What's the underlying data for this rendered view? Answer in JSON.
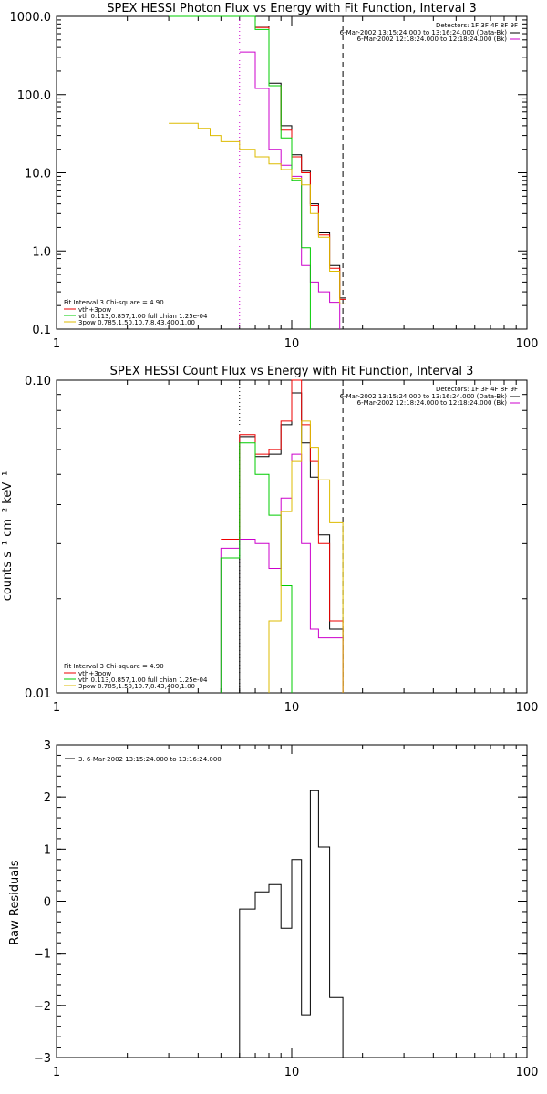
{
  "chart_data": [
    {
      "type": "line",
      "title": "SPEX HESSI Photon Flux vs Energy with Fit Function, Interval 3",
      "xlabel": "",
      "ylabel": "",
      "xscale": "log",
      "yscale": "log",
      "xlim": [
        1,
        100
      ],
      "ylim": [
        0.1,
        1000
      ],
      "x_ticks": [
        1,
        10,
        100
      ],
      "x_tick_labels": [
        "1",
        "10",
        "100"
      ],
      "y_ticks": [
        0.1,
        1,
        10,
        100,
        1000
      ],
      "y_tick_labels": [
        "0.1",
        "1.0",
        "10.0",
        "100.0",
        "1000.0"
      ],
      "vlines": [
        {
          "x": 6.0,
          "style": "dotted",
          "color": "#cc00cc"
        },
        {
          "x": 16.5,
          "style": "dashed",
          "color": "#000000"
        }
      ],
      "legend_right": [
        "Detectors: 1F 3F 4F 8F 9F",
        "6-Mar-2002 13:15:24.000 to 13:16:24.000 (Data-Bk)",
        "6-Mar-2002 12:18:24.000 to 12:18:24.000 (Bk)"
      ],
      "legend_left": [
        "Fit Interval 3   Chi-square = 4.90",
        "vth+3pow",
        "vth 0.113,0.857,1.00  full chian 1.25e-04",
        "3pow 0.785,1.50,10.7,8.43,400,1.00"
      ],
      "series": [
        {
          "color": "#000000",
          "points": [
            [
              6.0,
              1000
            ],
            [
              7.0,
              750
            ],
            [
              8.0,
              140
            ],
            [
              9.0,
              40
            ],
            [
              10.0,
              17
            ],
            [
              11.0,
              10.5
            ],
            [
              12.0,
              4.0
            ],
            [
              13.0,
              1.7
            ],
            [
              14.5,
              0.65
            ],
            [
              16.0,
              0.25
            ],
            [
              17.0,
              0.1
            ]
          ]
        },
        {
          "color": "#ee0000",
          "points": [
            [
              6.0,
              1000
            ],
            [
              7.0,
              720
            ],
            [
              8.0,
              130
            ],
            [
              9.0,
              35
            ],
            [
              10.0,
              16
            ],
            [
              11.0,
              10
            ],
            [
              12.0,
              3.8
            ],
            [
              13.0,
              1.6
            ],
            [
              14.5,
              0.6
            ],
            [
              16.0,
              0.24
            ],
            [
              17.0,
              0.1
            ]
          ]
        },
        {
          "color": "#cc00cc",
          "points": [
            [
              6.0,
              350
            ],
            [
              7.0,
              120
            ],
            [
              8.0,
              20
            ],
            [
              9.0,
              12.5
            ],
            [
              10.0,
              9
            ],
            [
              11.0,
              0.65
            ],
            [
              12.0,
              0.4
            ],
            [
              13.0,
              0.3
            ],
            [
              14.5,
              0.22
            ],
            [
              16.0,
              0.1
            ]
          ]
        },
        {
          "color": "#00cc00",
          "points": [
            [
              3.0,
              1000
            ],
            [
              6.0,
              1000
            ],
            [
              7.0,
              680
            ],
            [
              8.0,
              130
            ],
            [
              9.0,
              28
            ],
            [
              10.0,
              8
            ],
            [
              11.0,
              1.1
            ],
            [
              12.0,
              0.1
            ]
          ]
        },
        {
          "color": "#ddbb00",
          "points": [
            [
              3.0,
              43
            ],
            [
              4.0,
              37
            ],
            [
              4.5,
              30
            ],
            [
              5.0,
              25
            ],
            [
              6.0,
              20
            ],
            [
              7.0,
              16
            ],
            [
              8.0,
              13
            ],
            [
              9.0,
              11
            ],
            [
              10.0,
              8.5
            ],
            [
              11.0,
              7
            ],
            [
              12.0,
              3.0
            ],
            [
              13.0,
              1.5
            ],
            [
              14.5,
              0.55
            ],
            [
              16.0,
              0.21
            ],
            [
              17.0,
              0.1
            ]
          ]
        }
      ]
    },
    {
      "type": "line",
      "title": "SPEX HESSI Count Flux vs Energy with Fit Function, Interval 3",
      "xlabel": "",
      "ylabel": "counts s⁻¹ cm⁻² keV⁻¹",
      "xscale": "log",
      "yscale": "log",
      "xlim": [
        1,
        100
      ],
      "ylim": [
        0.01,
        0.1
      ],
      "x_ticks": [
        1,
        10,
        100
      ],
      "x_tick_labels": [
        "1",
        "10",
        "100"
      ],
      "y_ticks": [
        0.01,
        0.1
      ],
      "y_tick_labels": [
        "0.01",
        "0.10"
      ],
      "vlines": [
        {
          "x": 6.0,
          "style": "dotted",
          "color": "#000000"
        },
        {
          "x": 16.5,
          "style": "dashed",
          "color": "#000000"
        }
      ],
      "legend_right": [
        "Detectors: 1F 3F 4F 8F 9F",
        "6-Mar-2002 13:15:24.000 to 13:16:24.000 (Data-Bk)",
        "6-Mar-2002 12:18:24.000 to 12:18:24.000 (Bk)"
      ],
      "legend_left": [
        "Fit Interval 3   Chi-square = 4.90",
        "vth+3pow",
        "vth 0.113,0.857,1.00  full chian 1.25e-04",
        "3pow 0.785,1.50,10.7,8.43,400,1.00"
      ],
      "series": [
        {
          "color": "#000000",
          "points": [
            [
              6.0,
              0.01
            ],
            [
              6.0,
              0.066
            ],
            [
              7.0,
              0.057
            ],
            [
              8.0,
              0.058
            ],
            [
              9.0,
              0.072
            ],
            [
              10.0,
              0.091
            ],
            [
              11.0,
              0.063
            ],
            [
              12.0,
              0.049
            ],
            [
              13.0,
              0.032
            ],
            [
              14.5,
              0.016
            ],
            [
              16.5,
              0.01
            ]
          ]
        },
        {
          "color": "#ee0000",
          "points": [
            [
              5.0,
              0.031
            ],
            [
              6.0,
              0.067
            ],
            [
              7.0,
              0.058
            ],
            [
              8.0,
              0.06
            ],
            [
              9.0,
              0.074
            ],
            [
              10.0,
              0.1
            ],
            [
              11.0,
              0.072
            ],
            [
              12.0,
              0.055
            ],
            [
              13.0,
              0.03
            ],
            [
              14.5,
              0.017
            ],
            [
              16.5,
              0.01
            ]
          ]
        },
        {
          "color": "#cc00cc",
          "points": [
            [
              5.0,
              0.01
            ],
            [
              5.0,
              0.029
            ],
            [
              6.0,
              0.031
            ],
            [
              7.0,
              0.03
            ],
            [
              8.0,
              0.025
            ],
            [
              9.0,
              0.042
            ],
            [
              10.0,
              0.058
            ],
            [
              11.0,
              0.03
            ],
            [
              12.0,
              0.016
            ],
            [
              13.0,
              0.015
            ],
            [
              14.5,
              0.015
            ],
            [
              16.5,
              0.01
            ]
          ]
        },
        {
          "color": "#00cc00",
          "points": [
            [
              5.0,
              0.01
            ],
            [
              5.0,
              0.027
            ],
            [
              6.0,
              0.063
            ],
            [
              7.0,
              0.05
            ],
            [
              8.0,
              0.037
            ],
            [
              9.0,
              0.022
            ],
            [
              10.0,
              0.01
            ]
          ]
        },
        {
          "color": "#ddbb00",
          "points": [
            [
              8.0,
              0.01
            ],
            [
              8.0,
              0.017
            ],
            [
              9.0,
              0.038
            ],
            [
              10.0,
              0.055
            ],
            [
              11.0,
              0.074
            ],
            [
              12.0,
              0.061
            ],
            [
              13.0,
              0.048
            ],
            [
              14.5,
              0.035
            ],
            [
              16.5,
              0.01
            ]
          ]
        }
      ]
    },
    {
      "type": "line",
      "title": "",
      "xlabel": "",
      "ylabel": "Raw Residuals",
      "xscale": "log",
      "yscale": "linear",
      "xlim": [
        1,
        100
      ],
      "ylim": [
        -3,
        3
      ],
      "x_ticks": [
        1,
        10,
        100
      ],
      "x_tick_labels": [
        "1",
        "10",
        "100"
      ],
      "y_ticks": [
        -3,
        -2,
        -1,
        0,
        1,
        2,
        3
      ],
      "y_tick_labels": [
        "−3",
        "−2",
        "−1",
        "0",
        "1",
        "2",
        "3"
      ],
      "legend_left": [
        "3. 6-Mar-2002 13:15:24.000 to 13:16:24.000"
      ],
      "series": [
        {
          "color": "#000000",
          "points": [
            [
              6.0,
              -3
            ],
            [
              6.0,
              -0.15
            ],
            [
              7.0,
              0.18
            ],
            [
              8.0,
              0.32
            ],
            [
              9.0,
              -0.52
            ],
            [
              10.0,
              0.8
            ],
            [
              11.0,
              -2.18
            ],
            [
              12.0,
              2.12
            ],
            [
              13.0,
              1.04
            ],
            [
              14.5,
              -1.85
            ],
            [
              16.5,
              -3
            ]
          ]
        }
      ]
    }
  ]
}
